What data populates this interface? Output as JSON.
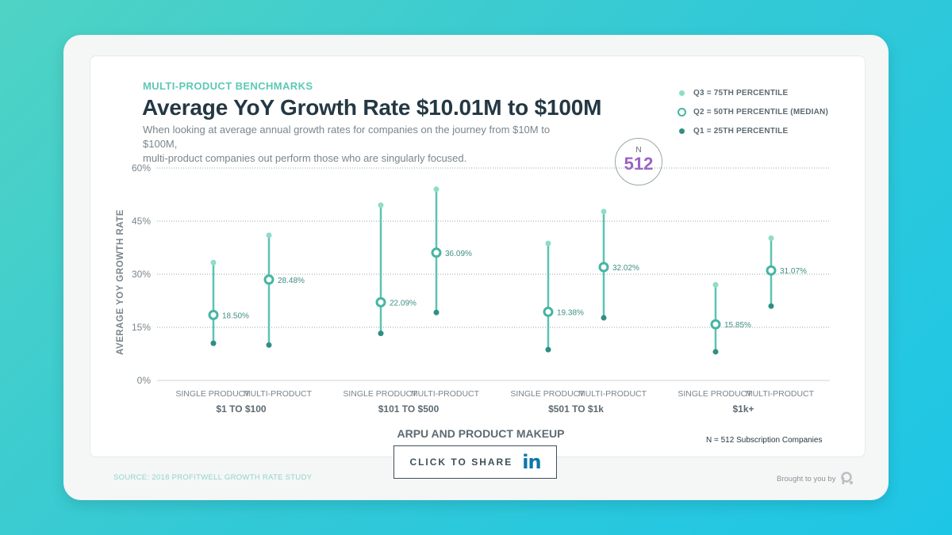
{
  "header": {
    "eyebrow": "MULTI-PRODUCT BENCHMARKS",
    "title": "Average YoY Growth Rate $10.01M to $100M",
    "subtitle_line1": "When looking at average annual growth rates for companies on the journey from $10M to $100M,",
    "subtitle_line2": "multi-product companies out perform those who are singularly focused."
  },
  "legend": {
    "q3": "Q3 = 75TH PERCENTILE",
    "q2": "Q2 = 50TH PERCENTILE (MEDIAN)",
    "q1": "Q1 = 25TH PERCENTILE"
  },
  "badge": {
    "label": "N",
    "value": "512"
  },
  "chart_data": {
    "type": "scatter",
    "title": "Average YoY Growth Rate $10.01M to $100M",
    "xlabel": "ARPU AND PRODUCT MAKEUP",
    "ylabel": "AVERAGE YOY GROWTH RATE",
    "ylim": [
      0,
      60
    ],
    "yticks": [
      0,
      15,
      30,
      45,
      60
    ],
    "ytick_labels": [
      "0%",
      "15%",
      "30%",
      "45%",
      "60%"
    ],
    "grid": true,
    "legend_position": "top-right",
    "groups": [
      {
        "label": "$1 TO $100",
        "items": [
          {
            "category": "SINGLE PRODUCT",
            "q1": 10.5,
            "median": 18.5,
            "median_label": "18.50%",
            "q3": 33.3
          },
          {
            "category": "MULTI-PRODUCT",
            "q1": 10.0,
            "median": 28.48,
            "median_label": "28.48%",
            "q3": 41.0
          }
        ]
      },
      {
        "label": "$101 TO $500",
        "items": [
          {
            "category": "SINGLE PRODUCT",
            "q1": 13.3,
            "median": 22.09,
            "median_label": "22.09%",
            "q3": 49.5
          },
          {
            "category": "MULTI-PRODUCT",
            "q1": 19.2,
            "median": 36.09,
            "median_label": "36.09%",
            "q3": 54.0
          }
        ]
      },
      {
        "label": "$501 TO $1k",
        "items": [
          {
            "category": "SINGLE PRODUCT",
            "q1": 8.7,
            "median": 19.38,
            "median_label": "19.38%",
            "q3": 38.7
          },
          {
            "category": "MULTI-PRODUCT",
            "q1": 17.7,
            "median": 32.02,
            "median_label": "32.02%",
            "q3": 47.7
          }
        ]
      },
      {
        "label": "$1k+",
        "items": [
          {
            "category": "SINGLE PRODUCT",
            "q1": 8.1,
            "median": 15.85,
            "median_label": "15.85%",
            "q3": 27.0
          },
          {
            "category": "MULTI-PRODUCT",
            "q1": 21.0,
            "median": 31.07,
            "median_label": "31.07%",
            "q3": 40.2
          }
        ]
      }
    ]
  },
  "share": {
    "label": "CLICK TO SHARE",
    "icon": "in"
  },
  "footer": {
    "n_note": "N = 512 Subscription Companies",
    "source": "SOURCE: 2018 PROFITWELL GROWTH RATE STUDY",
    "brought_by": "Brought to you by"
  },
  "colors": {
    "q3": "#8fdcc8",
    "q2": "#46b5a4",
    "q1": "#2f8f83",
    "line": "#5cc3b3",
    "badge_value": "#9a62c4"
  }
}
